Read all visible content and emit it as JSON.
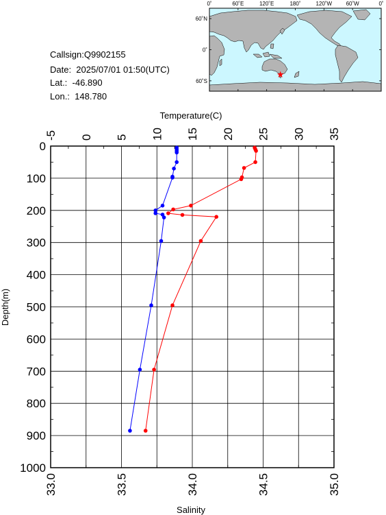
{
  "info": {
    "callsign": "Callsign:Q9902155",
    "date": "Date:  2025/07/01 01:50(UTC)",
    "lat": "Lat.:  -46.890",
    "lon": "Lon.:  148.780"
  },
  "map": {
    "top_ticks": [
      "0˚",
      "60˚E",
      "120˚E",
      "180˚",
      "120˚W",
      "60˚W",
      "0˚"
    ],
    "lat_ticks": [
      "60˚N",
      "0˚",
      "60˚S"
    ],
    "ocean_color": "#ccf7ff",
    "land_color": "#b4b4b4",
    "marker": {
      "lat": -46.89,
      "lon": 148.78,
      "icon": "star-icon",
      "color": "#ff0000"
    }
  },
  "chart_data": {
    "type": "line",
    "ylabel": "Depth(m)",
    "ylim": [
      1000,
      0
    ],
    "y_ticks": [
      "0",
      "100",
      "200",
      "300",
      "400",
      "500",
      "600",
      "700",
      "800",
      "900",
      "1000"
    ],
    "x_top": {
      "label": "Temperature(C)",
      "range": [
        -5,
        35
      ],
      "ticks": [
        "-5",
        "0",
        "5",
        "10",
        "15",
        "20",
        "25",
        "30",
        "35"
      ]
    },
    "x_bottom": {
      "label": "Salinity",
      "range": [
        33.0,
        35.0
      ],
      "ticks": [
        "33.0",
        "33.5",
        "34.0",
        "34.5",
        "35.0"
      ]
    },
    "grid": true,
    "series": [
      {
        "axis": "temperature",
        "color": "#ff0000",
        "points": [
          [
            23.8,
            5
          ],
          [
            23.9,
            10
          ],
          [
            24.0,
            15
          ],
          [
            23.9,
            50
          ],
          [
            22.3,
            68
          ],
          [
            22.0,
            97
          ],
          [
            21.9,
            103
          ],
          [
            14.8,
            185
          ],
          [
            12.3,
            197
          ],
          [
            11.6,
            209
          ],
          [
            13.6,
            214
          ],
          [
            18.4,
            220
          ],
          [
            16.2,
            295
          ],
          [
            12.2,
            495
          ],
          [
            9.6,
            695
          ],
          [
            8.4,
            885
          ]
        ]
      },
      {
        "axis": "salinity",
        "color": "#0000ff",
        "points": [
          [
            33.89,
            5
          ],
          [
            33.89,
            10
          ],
          [
            33.89,
            15
          ],
          [
            33.89,
            20
          ],
          [
            33.89,
            50
          ],
          [
            33.87,
            70
          ],
          [
            33.86,
            95
          ],
          [
            33.86,
            98
          ],
          [
            33.79,
            185
          ],
          [
            33.74,
            200
          ],
          [
            33.74,
            209
          ],
          [
            33.79,
            213
          ],
          [
            33.8,
            222
          ],
          [
            33.78,
            295
          ],
          [
            33.71,
            495
          ],
          [
            33.63,
            695
          ],
          [
            33.56,
            885
          ]
        ]
      }
    ]
  }
}
